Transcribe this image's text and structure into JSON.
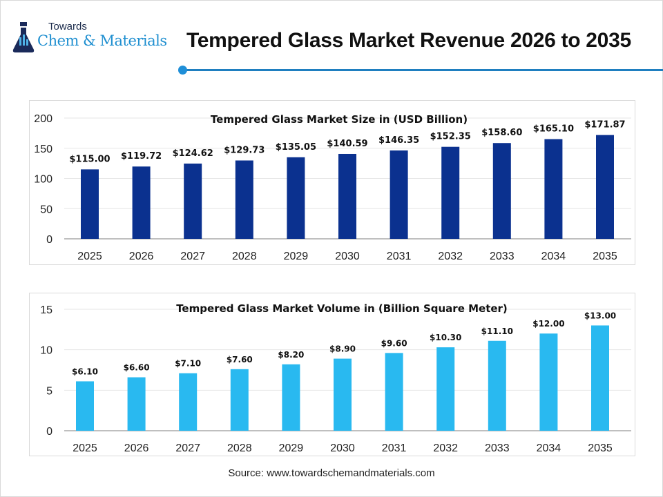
{
  "header": {
    "logo_top": "Towards",
    "logo_main": "Chem & Materials",
    "title": "Tempered Glass Market Revenue 2026 to 2035"
  },
  "colors": {
    "accent": "#1f7fc0",
    "size_bars": "#0b318f",
    "volume_bars": "#29b9f0"
  },
  "chart_data": [
    {
      "type": "bar",
      "title": "Tempered Glass Market Size in (USD Billion)",
      "categories": [
        "2025",
        "2026",
        "2027",
        "2028",
        "2029",
        "2030",
        "2031",
        "2032",
        "2033",
        "2034",
        "2035"
      ],
      "values": [
        115.0,
        119.72,
        124.62,
        129.73,
        135.05,
        140.59,
        146.35,
        152.35,
        158.6,
        165.1,
        171.87
      ],
      "labels": [
        "$115.00",
        "$119.72",
        "$124.62",
        "$129.73",
        "$135.05",
        "$140.59",
        "$146.35",
        "$152.35",
        "$158.60",
        "$165.10",
        "$171.87"
      ],
      "yticks": [
        "0",
        "50",
        "100",
        "150",
        "200"
      ],
      "ylim": [
        0,
        200
      ],
      "grid": true
    },
    {
      "type": "bar",
      "title": "Tempered Glass Market Volume in (Billion Square Meter)",
      "categories": [
        "2025",
        "2026",
        "2027",
        "2028",
        "2029",
        "2030",
        "2031",
        "2032",
        "2033",
        "2034",
        "2035"
      ],
      "values": [
        6.1,
        6.6,
        7.1,
        7.6,
        8.2,
        8.9,
        9.6,
        10.3,
        11.1,
        12.0,
        13.0
      ],
      "labels": [
        "$6.10",
        "$6.60",
        "$7.10",
        "$7.60",
        "$8.20",
        "$8.90",
        "$9.60",
        "$10.30",
        "$11.10",
        "$12.00",
        "$13.00"
      ],
      "yticks": [
        "0",
        "5",
        "10",
        "15"
      ],
      "ylim": [
        0,
        15
      ],
      "grid": true
    }
  ],
  "footer": {
    "source": "Source: www.towardschemandmaterials.com"
  }
}
